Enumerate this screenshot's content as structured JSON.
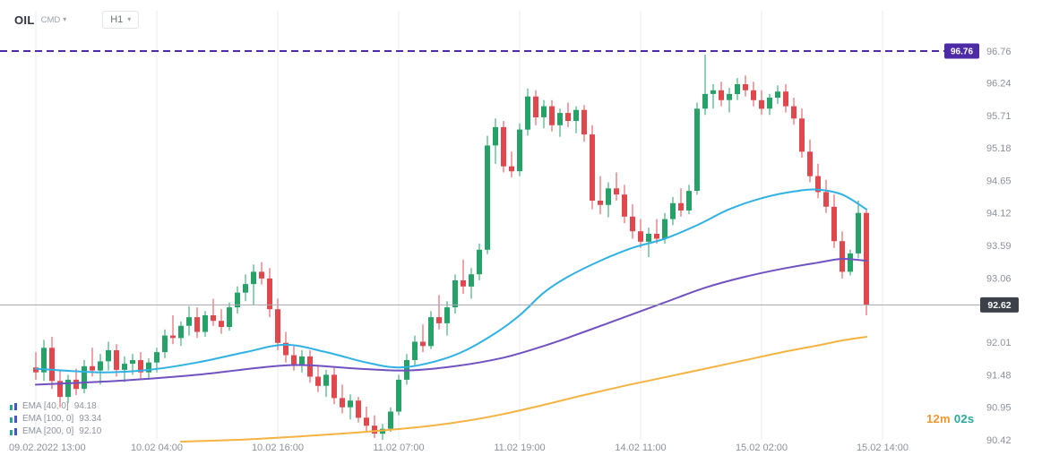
{
  "header": {
    "symbol": "OIL",
    "market": "CMD",
    "timeframe": "H1"
  },
  "legend": {
    "items": [
      {
        "label": "EMA [40, 0]",
        "value": "94.18"
      },
      {
        "label": "EMA [100, 0]",
        "value": "93.34"
      },
      {
        "label": "EMA [200, 0]",
        "value": "92.10"
      }
    ]
  },
  "timer": {
    "minutes": "12m",
    "seconds": "02s"
  },
  "chart_data": {
    "type": "candlestick",
    "title": "OIL CMD H1",
    "ylim": [
      90.42,
      96.76
    ],
    "grid": "vertical-only",
    "current_price": 92.62,
    "resistance_level": 96.76,
    "candle_fields": [
      "open",
      "high",
      "low",
      "close"
    ],
    "y_ticks": [
      96.76,
      96.24,
      95.71,
      95.18,
      94.65,
      94.12,
      93.59,
      93.06,
      92.01,
      91.48,
      90.95,
      90.42
    ],
    "x_ticks": [
      {
        "index": 0,
        "label": "09.02.2022 13:00"
      },
      {
        "index": 15,
        "label": "10.02 04:00"
      },
      {
        "index": 30,
        "label": "10.02 16:00"
      },
      {
        "index": 45,
        "label": "11.02 07:00"
      },
      {
        "index": 60,
        "label": "11.02 19:00"
      },
      {
        "index": 75,
        "label": "14.02 11:00"
      },
      {
        "index": 90,
        "label": "15.02 02:00"
      },
      {
        "index": 105,
        "label": "15.02 14:00"
      }
    ],
    "candles": [
      [
        91.6,
        91.85,
        91.4,
        91.52
      ],
      [
        91.52,
        92.05,
        91.38,
        91.92
      ],
      [
        91.92,
        92.1,
        91.25,
        91.38
      ],
      [
        91.38,
        91.55,
        90.95,
        91.12
      ],
      [
        91.12,
        91.48,
        91.02,
        91.4
      ],
      [
        91.4,
        91.58,
        91.15,
        91.25
      ],
      [
        91.25,
        91.72,
        91.18,
        91.62
      ],
      [
        91.62,
        91.92,
        91.45,
        91.55
      ],
      [
        91.55,
        91.82,
        91.32,
        91.7
      ],
      [
        91.7,
        92.02,
        91.55,
        91.88
      ],
      [
        91.88,
        91.98,
        91.45,
        91.56
      ],
      [
        91.56,
        91.78,
        91.36,
        91.66
      ],
      [
        91.66,
        91.82,
        91.48,
        91.72
      ],
      [
        91.72,
        91.85,
        91.42,
        91.52
      ],
      [
        91.52,
        91.75,
        91.4,
        91.68
      ],
      [
        91.68,
        91.92,
        91.52,
        91.85
      ],
      [
        91.85,
        92.22,
        91.75,
        92.12
      ],
      [
        92.12,
        92.45,
        91.98,
        92.08
      ],
      [
        92.08,
        92.35,
        91.95,
        92.28
      ],
      [
        92.28,
        92.6,
        92.12,
        92.42
      ],
      [
        92.42,
        92.58,
        92.08,
        92.18
      ],
      [
        92.18,
        92.52,
        92.1,
        92.45
      ],
      [
        92.45,
        92.72,
        92.28,
        92.36
      ],
      [
        92.36,
        92.55,
        92.15,
        92.26
      ],
      [
        92.26,
        92.66,
        92.2,
        92.58
      ],
      [
        92.58,
        92.92,
        92.48,
        92.82
      ],
      [
        92.82,
        93.12,
        92.68,
        92.96
      ],
      [
        92.96,
        93.28,
        92.62,
        93.16
      ],
      [
        93.16,
        93.32,
        92.95,
        93.05
      ],
      [
        93.05,
        93.22,
        92.42,
        92.55
      ],
      [
        92.55,
        92.72,
        91.88,
        92.0
      ],
      [
        92.0,
        92.18,
        91.68,
        91.8
      ],
      [
        91.8,
        91.96,
        91.55,
        91.65
      ],
      [
        91.65,
        91.88,
        91.52,
        91.78
      ],
      [
        91.78,
        91.88,
        91.35,
        91.45
      ],
      [
        91.45,
        91.62,
        91.2,
        91.3
      ],
      [
        91.3,
        91.56,
        91.12,
        91.48
      ],
      [
        91.48,
        91.6,
        91.0,
        91.1
      ],
      [
        91.1,
        91.32,
        90.85,
        90.95
      ],
      [
        90.95,
        91.16,
        90.75,
        91.06
      ],
      [
        91.06,
        91.12,
        90.7,
        90.78
      ],
      [
        90.78,
        90.96,
        90.55,
        90.65
      ],
      [
        90.65,
        90.82,
        90.45,
        90.52
      ],
      [
        90.52,
        90.68,
        90.42,
        90.6
      ],
      [
        90.6,
        90.95,
        90.55,
        90.88
      ],
      [
        90.88,
        91.48,
        90.82,
        91.4
      ],
      [
        91.4,
        91.82,
        91.32,
        91.72
      ],
      [
        91.72,
        92.12,
        91.62,
        92.02
      ],
      [
        92.02,
        92.3,
        91.85,
        91.95
      ],
      [
        91.95,
        92.52,
        91.9,
        92.42
      ],
      [
        92.42,
        92.78,
        92.22,
        92.32
      ],
      [
        92.32,
        92.68,
        92.12,
        92.58
      ],
      [
        92.58,
        93.12,
        92.48,
        93.02
      ],
      [
        93.02,
        93.36,
        92.8,
        92.92
      ],
      [
        92.92,
        93.22,
        92.72,
        93.12
      ],
      [
        93.12,
        93.62,
        93.02,
        93.52
      ],
      [
        93.52,
        95.38,
        93.45,
        95.22
      ],
      [
        95.22,
        95.66,
        94.92,
        95.52
      ],
      [
        95.52,
        95.62,
        94.78,
        94.88
      ],
      [
        94.88,
        95.12,
        94.7,
        94.8
      ],
      [
        94.8,
        95.58,
        94.72,
        95.48
      ],
      [
        95.48,
        96.15,
        95.38,
        96.02
      ],
      [
        96.02,
        96.12,
        95.55,
        95.68
      ],
      [
        95.68,
        95.96,
        95.5,
        95.86
      ],
      [
        95.86,
        95.96,
        95.45,
        95.55
      ],
      [
        95.55,
        95.82,
        95.36,
        95.75
      ],
      [
        95.75,
        95.92,
        95.52,
        95.62
      ],
      [
        95.62,
        95.86,
        95.42,
        95.8
      ],
      [
        95.8,
        95.88,
        95.28,
        95.4
      ],
      [
        95.4,
        95.55,
        94.18,
        94.32
      ],
      [
        94.32,
        94.72,
        94.1,
        94.25
      ],
      [
        94.25,
        94.62,
        94.05,
        94.52
      ],
      [
        94.52,
        94.78,
        94.32,
        94.42
      ],
      [
        94.42,
        94.58,
        93.95,
        94.06
      ],
      [
        94.06,
        94.26,
        93.7,
        93.82
      ],
      [
        93.82,
        94.02,
        93.55,
        93.65
      ],
      [
        93.65,
        93.88,
        93.4,
        93.78
      ],
      [
        93.78,
        94.02,
        93.62,
        93.7
      ],
      [
        93.7,
        94.12,
        93.62,
        94.02
      ],
      [
        94.02,
        94.38,
        93.92,
        94.28
      ],
      [
        94.28,
        94.52,
        94.06,
        94.16
      ],
      [
        94.16,
        94.58,
        94.1,
        94.48
      ],
      [
        94.48,
        95.92,
        94.42,
        95.82
      ],
      [
        95.82,
        96.7,
        95.72,
        96.06
      ],
      [
        96.06,
        96.22,
        95.82,
        96.12
      ],
      [
        96.12,
        96.26,
        95.86,
        95.96
      ],
      [
        95.96,
        96.16,
        95.76,
        96.06
      ],
      [
        96.06,
        96.32,
        95.96,
        96.22
      ],
      [
        96.22,
        96.36,
        96.02,
        96.12
      ],
      [
        96.12,
        96.26,
        95.86,
        95.96
      ],
      [
        95.96,
        96.12,
        95.72,
        95.82
      ],
      [
        95.82,
        96.06,
        95.72,
        96.0
      ],
      [
        96.0,
        96.2,
        95.9,
        96.1
      ],
      [
        96.1,
        96.22,
        95.76,
        95.86
      ],
      [
        95.86,
        96.0,
        95.56,
        95.66
      ],
      [
        95.66,
        95.82,
        95.02,
        95.12
      ],
      [
        95.12,
        95.32,
        94.62,
        94.72
      ],
      [
        94.72,
        94.92,
        94.36,
        94.46
      ],
      [
        94.46,
        94.66,
        94.12,
        94.22
      ],
      [
        94.22,
        94.42,
        93.55,
        93.66
      ],
      [
        93.66,
        93.82,
        93.05,
        93.16
      ],
      [
        93.16,
        93.52,
        93.1,
        93.46
      ],
      [
        93.46,
        94.32,
        93.38,
        94.12
      ],
      [
        94.12,
        94.18,
        92.45,
        92.62
      ]
    ],
    "emas": [
      {
        "name": "EMA 40",
        "color": "#2fb1e3",
        "points": [
          [
            0,
            91.58
          ],
          [
            8,
            91.52
          ],
          [
            14,
            91.56
          ],
          [
            20,
            91.68
          ],
          [
            26,
            91.85
          ],
          [
            31,
            91.97
          ],
          [
            36,
            91.85
          ],
          [
            41,
            91.68
          ],
          [
            45,
            91.6
          ],
          [
            49,
            91.68
          ],
          [
            53,
            91.86
          ],
          [
            57,
            92.16
          ],
          [
            60,
            92.45
          ],
          [
            63,
            92.82
          ],
          [
            66,
            93.08
          ],
          [
            70,
            93.34
          ],
          [
            74,
            93.55
          ],
          [
            78,
            93.7
          ],
          [
            82,
            93.92
          ],
          [
            86,
            94.18
          ],
          [
            90,
            94.36
          ],
          [
            94,
            94.47
          ],
          [
            97,
            94.5
          ],
          [
            100,
            94.42
          ],
          [
            103,
            94.18
          ]
        ]
      },
      {
        "name": "EMA 100",
        "color": "#7051c0",
        "points": [
          [
            0,
            91.32
          ],
          [
            10,
            91.38
          ],
          [
            20,
            91.48
          ],
          [
            28,
            91.6
          ],
          [
            33,
            91.64
          ],
          [
            40,
            91.58
          ],
          [
            46,
            91.55
          ],
          [
            52,
            91.62
          ],
          [
            58,
            91.76
          ],
          [
            63,
            91.95
          ],
          [
            68,
            92.18
          ],
          [
            73,
            92.42
          ],
          [
            78,
            92.66
          ],
          [
            83,
            92.9
          ],
          [
            88,
            93.08
          ],
          [
            93,
            93.22
          ],
          [
            97,
            93.31
          ],
          [
            100,
            93.37
          ],
          [
            103,
            93.34
          ]
        ]
      },
      {
        "name": "EMA 200",
        "color": "#f5b342",
        "points": [
          [
            18,
            90.39
          ],
          [
            25,
            90.42
          ],
          [
            32,
            90.47
          ],
          [
            40,
            90.54
          ],
          [
            47,
            90.62
          ],
          [
            53,
            90.72
          ],
          [
            58,
            90.84
          ],
          [
            63,
            90.99
          ],
          [
            68,
            91.15
          ],
          [
            73,
            91.3
          ],
          [
            78,
            91.44
          ],
          [
            83,
            91.58
          ],
          [
            88,
            91.72
          ],
          [
            93,
            91.86
          ],
          [
            97,
            91.96
          ],
          [
            100,
            92.04
          ],
          [
            103,
            92.1
          ]
        ]
      }
    ],
    "colors": {
      "up": "#26a269",
      "down": "#e0484e",
      "grid": "#e9ebee",
      "axis_text": "#8b919c",
      "price_line": "#a2a6ad",
      "price_badge_bg": "#3c4149",
      "price_badge_text": "#ffffff",
      "resistance": "#4e2ba6",
      "resistance_badge_text": "#ffffff"
    }
  }
}
